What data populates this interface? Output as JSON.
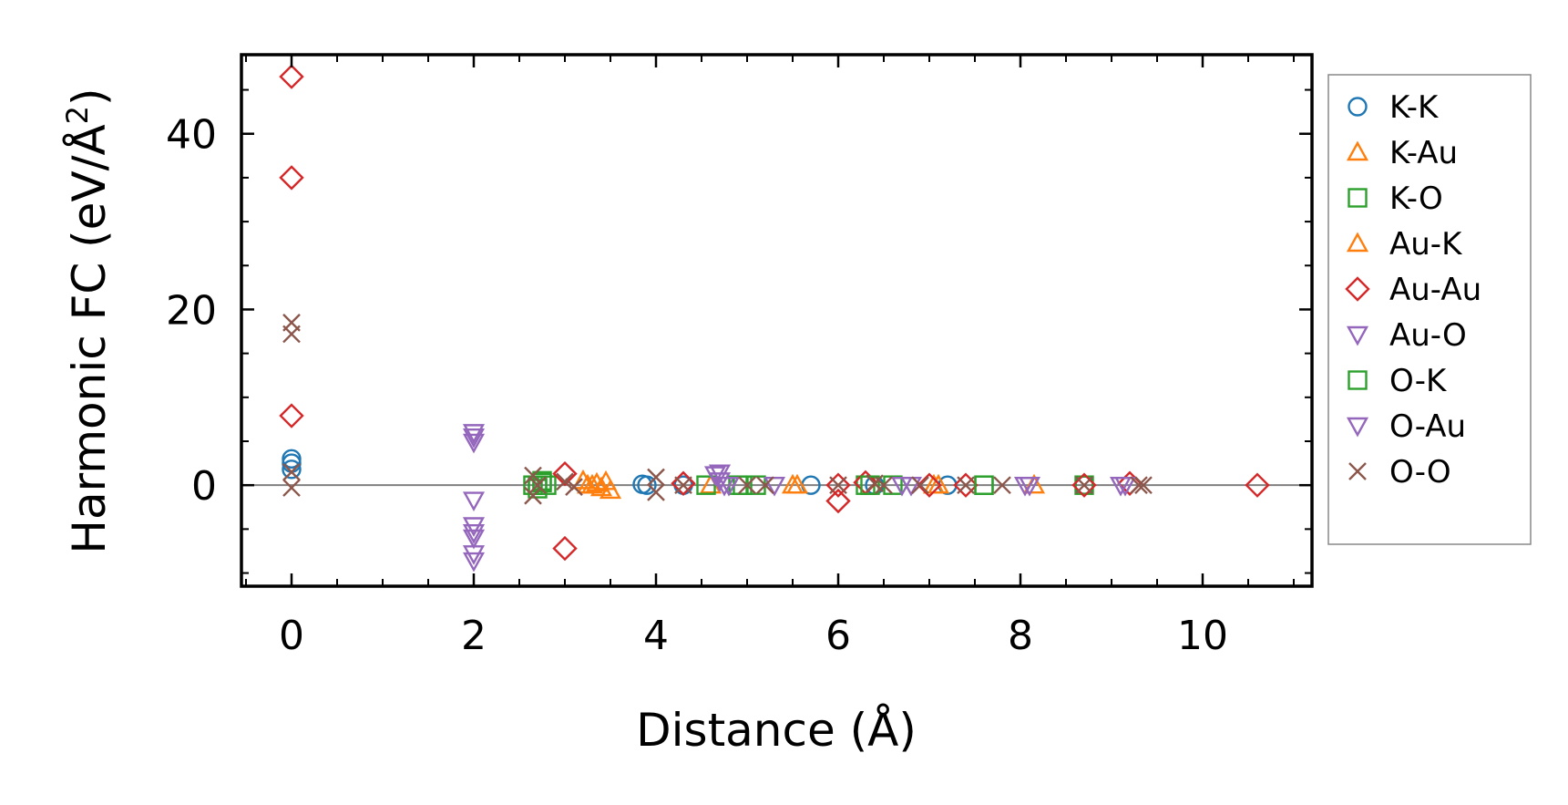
{
  "chart_data": {
    "type": "scatter",
    "title": "",
    "xlabel": "Distance (Å)",
    "ylabel_main": "Harmonic FC (eV/Å",
    "ylabel_sup": "2",
    "ylabel_close": ")",
    "xlim": [
      -0.55,
      11.2
    ],
    "ylim": [
      -11.5,
      49
    ],
    "xticks": [
      0,
      2,
      4,
      6,
      8,
      10
    ],
    "xtick_labels": [
      "0",
      "2",
      "4",
      "6",
      "8",
      "10"
    ],
    "yticks": [
      0,
      20,
      40
    ],
    "ytick_labels": [
      "0",
      "20",
      "40"
    ],
    "grid": false,
    "zero_line": true,
    "legend_position": "outside-right",
    "series": [
      {
        "name": "K-K",
        "marker": "circle",
        "color": "#1f77b4",
        "points": [
          [
            0,
            3.0
          ],
          [
            0,
            2.5
          ],
          [
            0,
            1.8
          ],
          [
            3.85,
            0.1
          ],
          [
            3.9,
            0
          ],
          [
            4.3,
            0
          ],
          [
            5.7,
            0
          ],
          [
            6.4,
            0
          ],
          [
            7.2,
            0
          ],
          [
            8.7,
            0
          ]
        ]
      },
      {
        "name": "K-Au",
        "marker": "triangle-up",
        "color": "#ff7f0e",
        "points": [
          [
            3.2,
            0.5
          ],
          [
            3.3,
            0
          ],
          [
            3.4,
            -0.3
          ],
          [
            3.45,
            0.4
          ],
          [
            4.6,
            0
          ],
          [
            5.55,
            0
          ],
          [
            7.05,
            0
          ],
          [
            8.15,
            0
          ]
        ]
      },
      {
        "name": "K-O",
        "marker": "square",
        "color": "#2ca02c",
        "points": [
          [
            2.65,
            0
          ],
          [
            2.7,
            -0.4
          ],
          [
            2.75,
            0.3
          ],
          [
            2.8,
            0
          ],
          [
            4.55,
            0
          ],
          [
            4.9,
            0
          ],
          [
            5.1,
            0
          ],
          [
            6.3,
            0
          ],
          [
            6.6,
            0
          ],
          [
            7.6,
            0
          ],
          [
            8.7,
            0
          ]
        ]
      },
      {
        "name": "Au-K",
        "marker": "triangle-up",
        "color": "#ff7f0e",
        "points": [
          [
            3.25,
            0
          ],
          [
            3.35,
            0.2
          ],
          [
            3.5,
            -0.6
          ],
          [
            5.5,
            0
          ],
          [
            7.1,
            0
          ]
        ]
      },
      {
        "name": "Au-Au",
        "marker": "diamond",
        "color": "#d62728",
        "points": [
          [
            0,
            46.5
          ],
          [
            0,
            35
          ],
          [
            0,
            7.9
          ],
          [
            3.0,
            1.3
          ],
          [
            3.0,
            -7.2
          ],
          [
            4.3,
            0.2
          ],
          [
            6.0,
            -1.8
          ],
          [
            6.0,
            0
          ],
          [
            6.3,
            0.3
          ],
          [
            7.0,
            0
          ],
          [
            7.4,
            0
          ],
          [
            8.7,
            0
          ],
          [
            9.2,
            0.2
          ],
          [
            10.6,
            0
          ]
        ]
      },
      {
        "name": "Au-O",
        "marker": "triangle-down",
        "color": "#9467bd",
        "points": [
          [
            2.0,
            6.0
          ],
          [
            2.0,
            4.9
          ],
          [
            2.0,
            -1.7
          ],
          [
            2.0,
            -4.6
          ],
          [
            2.0,
            -5.4
          ],
          [
            2.0,
            -7.8
          ],
          [
            2.0,
            -8.6
          ],
          [
            4.65,
            1.2
          ],
          [
            4.7,
            0.5
          ],
          [
            4.75,
            0
          ],
          [
            5.3,
            0
          ],
          [
            6.8,
            0
          ],
          [
            8.05,
            0
          ],
          [
            9.1,
            0
          ]
        ]
      },
      {
        "name": "O-K",
        "marker": "square",
        "color": "#2ca02c",
        "points": [
          [
            2.7,
            0
          ],
          [
            2.75,
            0.5
          ],
          [
            4.95,
            0
          ],
          [
            6.35,
            0
          ],
          [
            7.6,
            0
          ]
        ]
      },
      {
        "name": "O-Au",
        "marker": "triangle-down",
        "color": "#9467bd",
        "points": [
          [
            2.0,
            5.5
          ],
          [
            2.0,
            -6.0
          ],
          [
            4.7,
            1.4
          ],
          [
            4.8,
            0
          ],
          [
            6.7,
            0
          ],
          [
            8.1,
            0
          ],
          [
            9.15,
            0
          ]
        ]
      },
      {
        "name": "O-O",
        "marker": "x",
        "color": "#8c564b",
        "points": [
          [
            0,
            18.5
          ],
          [
            0,
            17.2
          ],
          [
            0,
            1.5
          ],
          [
            0,
            -0.3
          ],
          [
            2.65,
            1.1
          ],
          [
            2.65,
            -1.2
          ],
          [
            2.7,
            0
          ],
          [
            3.0,
            0.4
          ],
          [
            3.1,
            -0.2
          ],
          [
            4.0,
            0.9
          ],
          [
            4.0,
            -0.8
          ],
          [
            4.3,
            0
          ],
          [
            5.0,
            0
          ],
          [
            5.2,
            0
          ],
          [
            6.0,
            0
          ],
          [
            6.4,
            0.2
          ],
          [
            6.5,
            0
          ],
          [
            6.9,
            0
          ],
          [
            7.4,
            0
          ],
          [
            7.8,
            0
          ],
          [
            8.7,
            0
          ],
          [
            9.3,
            0
          ],
          [
            9.35,
            0
          ]
        ]
      }
    ]
  }
}
